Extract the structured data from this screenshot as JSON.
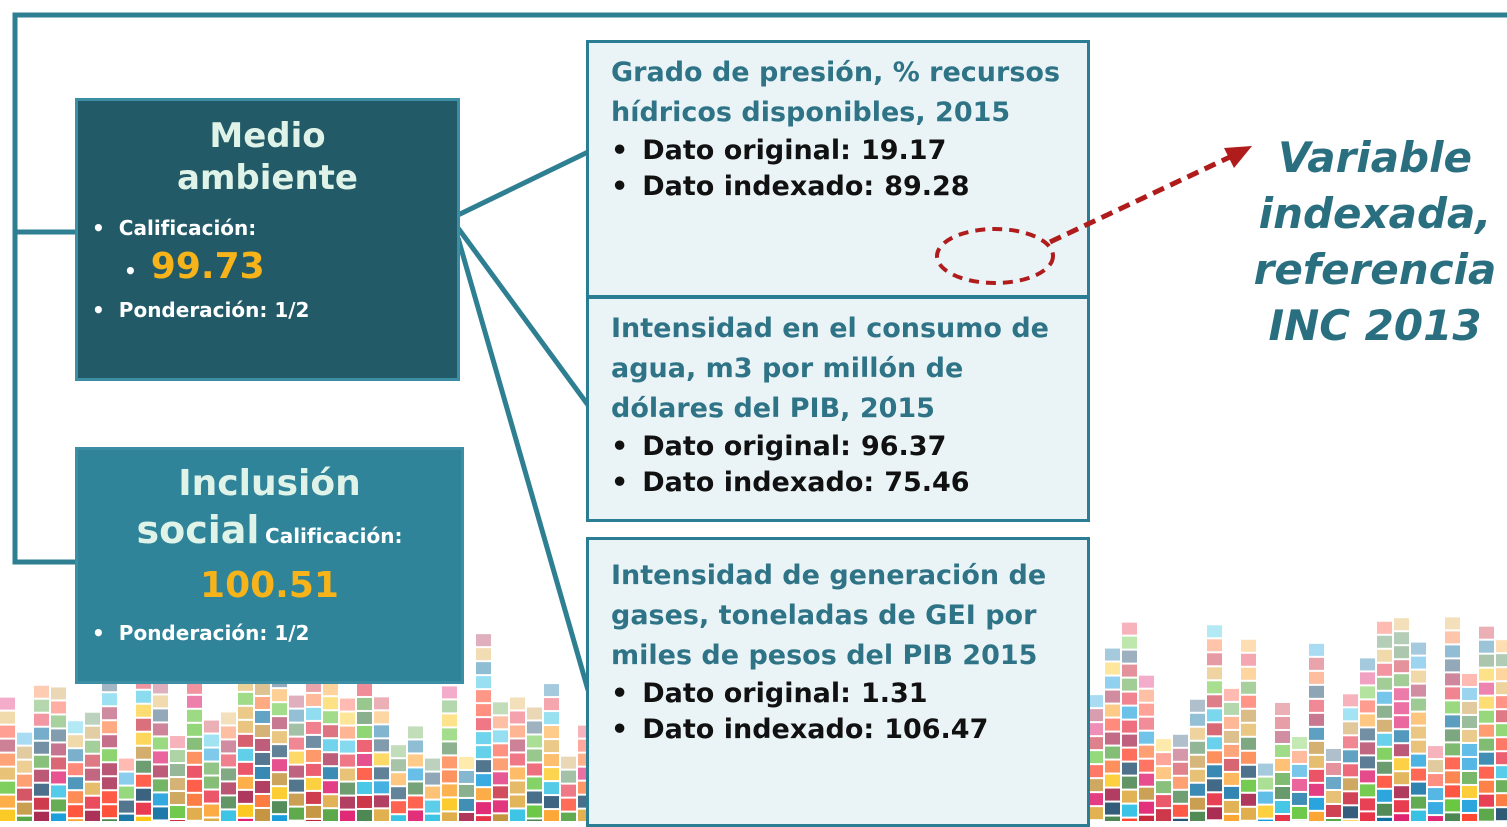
{
  "left_boxes": [
    {
      "title": "Medio ambiente",
      "rating_label": "Calificación:",
      "rating": "99.73",
      "weight": "Ponderación: 1/2"
    },
    {
      "title_line1": "Inclusión",
      "title_line2": "social",
      "rating_label": "Calificación:",
      "rating": "100.51",
      "weight": "Ponderación: 1/2"
    }
  ],
  "indicators": [
    {
      "title": "Grado de presión, % recursos hídricos disponibles, 2015",
      "bullets": [
        {
          "label": "Dato original:",
          "value": "19.17"
        },
        {
          "label": "Dato indexado:",
          "value": "89.28"
        }
      ]
    },
    {
      "title": "Intensidad en el consumo de agua, m3 por millón de dólares del PIB, 2015",
      "bullets": [
        {
          "label": "Dato original:",
          "value": "96.37"
        },
        {
          "label": "Dato indexado:",
          "value": "75.46"
        }
      ]
    },
    {
      "title": "Intensidad de generación de gases, toneladas de GEI por miles de pesos del PIB 2015",
      "bullets": [
        {
          "label": "Dato original:",
          "value": "1.31"
        },
        {
          "label": "Dato indexado:",
          "value": "106.47"
        }
      ]
    }
  ],
  "annotation": "Variable indexada, referencia INC 2013"
}
